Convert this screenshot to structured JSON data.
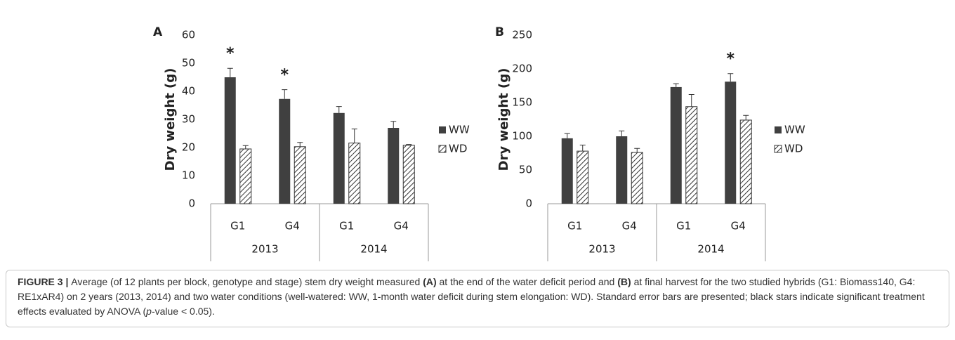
{
  "chart_data": [
    {
      "type": "bar",
      "panel": "A",
      "ylabel": "Dry weight (g)",
      "categories": [
        "G1",
        "G4",
        "G1",
        "G4"
      ],
      "groups": [
        "2013",
        "2014"
      ],
      "series": [
        {
          "name": "WW",
          "color": "#404040",
          "values": [
            45,
            37.3,
            32.3,
            27
          ],
          "errors": [
            3.2,
            3.3,
            2.3,
            2.3
          ]
        },
        {
          "name": "WD",
          "color": "hatch",
          "values": [
            19.5,
            20.3,
            21.6,
            20.8
          ],
          "errors": [
            1.2,
            1.5,
            5,
            0.3
          ]
        }
      ],
      "annotation": "*",
      "significant": [
        true,
        true,
        false,
        false
      ],
      "ylim": [
        0,
        60
      ],
      "yticks": [
        0,
        10,
        20,
        30,
        40,
        50,
        60
      ],
      "grid": false,
      "legend": "right"
    },
    {
      "type": "bar",
      "panel": "B",
      "ylabel": "Dry weight (g)",
      "categories": [
        "G1",
        "G4",
        "G1",
        "G4"
      ],
      "groups": [
        "2013",
        "2014"
      ],
      "series": [
        {
          "name": "WW",
          "color": "#404040",
          "values": [
            97,
            100,
            173,
            181
          ],
          "errors": [
            7,
            8,
            5,
            12
          ]
        },
        {
          "name": "WD",
          "color": "hatch",
          "values": [
            78,
            76,
            144,
            124
          ],
          "errors": [
            9,
            6,
            18,
            7
          ]
        }
      ],
      "annotation": "*",
      "significant": [
        false,
        false,
        false,
        true
      ],
      "ylim": [
        0,
        250
      ],
      "yticks": [
        0,
        50,
        100,
        150,
        200,
        250
      ],
      "grid": false,
      "legend": "right"
    }
  ],
  "caption": [
    {
      "text": "FIGURE 3 | ",
      "style": "bold"
    },
    {
      "text": "Average (of 12 plants per block, genotype and stage) stem dry weight measured "
    },
    {
      "text": "(A)",
      "style": "bold"
    },
    {
      "text": " at the end of the water deficit period and "
    },
    {
      "text": "(B)",
      "style": "bold"
    },
    {
      "text": " at final harvest for the two studied hybrids (G1: Biomass140, G4: RE1xAR4) on 2 years (2013, 2014) and two water conditions (well-watered: WW, 1-month water deficit during stem elongation: WD). Standard error bars are presented; black stars indicate significant treatment effects evaluated by ANOVA ("
    },
    {
      "text": "p",
      "style": "italic"
    },
    {
      "text": "-value < 0.05)."
    }
  ]
}
